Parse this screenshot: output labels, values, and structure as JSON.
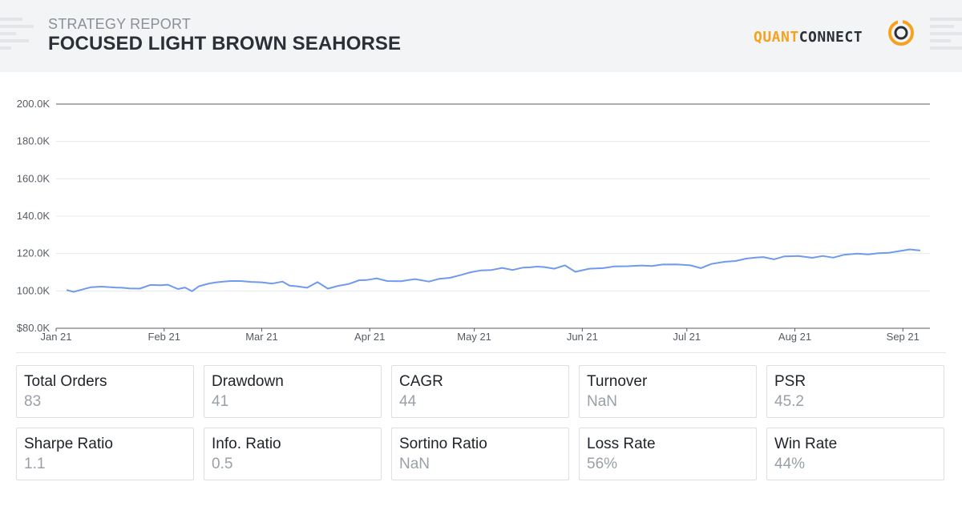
{
  "header": {
    "subtitle": "STRATEGY REPORT",
    "title": "FOCUSED LIGHT BROWN SEAHORSE",
    "logo_quant": "QUANT",
    "logo_connect": "CONNECT"
  },
  "chart_data": {
    "type": "line",
    "title": "",
    "xlabel": "",
    "ylabel": "",
    "ylim": [
      80000,
      200000
    ],
    "y_ticks": [
      "$80.0K",
      "100.0K",
      "120.0K",
      "140.0K",
      "160.0K",
      "180.0K",
      "200.0K"
    ],
    "x_ticks": [
      "Jan 21",
      "Feb 21",
      "Mar 21",
      "Apr 21",
      "May 21",
      "Jun 21",
      "Jul 21",
      "Aug 21",
      "Sep 21"
    ],
    "grid": true,
    "line_color": "#6f9aed",
    "series": [
      {
        "x": [
          "2021-01-04",
          "2021-01-06",
          "2021-01-08",
          "2021-01-11",
          "2021-01-14",
          "2021-01-18",
          "2021-01-20",
          "2021-01-22",
          "2021-01-25",
          "2021-01-28",
          "2021-01-31",
          "2021-02-02",
          "2021-02-05",
          "2021-02-07",
          "2021-02-09",
          "2021-02-11",
          "2021-02-14",
          "2021-02-16",
          "2021-02-18",
          "2021-02-20",
          "2021-02-23",
          "2021-02-26",
          "2021-03-01",
          "2021-03-04",
          "2021-03-07",
          "2021-03-09",
          "2021-03-11",
          "2021-03-14",
          "2021-03-17",
          "2021-03-20",
          "2021-03-23",
          "2021-03-26",
          "2021-03-29",
          "2021-03-31",
          "2021-04-03",
          "2021-04-06",
          "2021-04-10",
          "2021-04-14",
          "2021-04-18",
          "2021-04-21",
          "2021-04-24",
          "2021-04-27",
          "2021-04-30",
          "2021-05-03",
          "2021-05-06",
          "2021-05-09",
          "2021-05-12",
          "2021-05-15",
          "2021-05-17",
          "2021-05-19",
          "2021-05-21",
          "2021-05-24",
          "2021-05-27",
          "2021-05-30",
          "2021-06-03",
          "2021-06-07",
          "2021-06-10",
          "2021-06-14",
          "2021-06-18",
          "2021-06-21",
          "2021-06-24",
          "2021-06-28",
          "2021-07-02",
          "2021-07-05",
          "2021-07-08",
          "2021-07-12",
          "2021-07-15",
          "2021-07-18",
          "2021-07-21",
          "2021-07-23",
          "2021-07-26",
          "2021-07-29",
          "2021-08-02",
          "2021-08-06",
          "2021-08-09",
          "2021-08-12",
          "2021-08-15",
          "2021-08-19",
          "2021-08-22",
          "2021-08-25",
          "2021-08-28",
          "2021-08-31",
          "2021-09-03",
          "2021-09-06"
        ],
        "y": [
          100500,
          99500,
          100500,
          102000,
          102300,
          101800,
          101700,
          101300,
          101200,
          103200,
          103000,
          103300,
          101000,
          101800,
          99800,
          102500,
          104000,
          104600,
          105000,
          105300,
          105300,
          104800,
          104600,
          103900,
          105000,
          102800,
          102500,
          101700,
          104700,
          101200,
          102700,
          103700,
          105700,
          105800,
          106700,
          105300,
          105200,
          106300,
          105000,
          106500,
          107000,
          108400,
          110000,
          111000,
          111200,
          112300,
          111200,
          112500,
          112600,
          113000,
          112800,
          111900,
          113700,
          110200,
          111900,
          112200,
          113100,
          113200,
          113600,
          113300,
          114100,
          114200,
          113700,
          112200,
          114400,
          115600,
          116000,
          117300,
          117900,
          118100,
          116900,
          118500,
          118700,
          117700,
          118700,
          117800,
          119300,
          120000,
          119500,
          120200,
          120400,
          121300,
          122200,
          121600
        ]
      }
    ]
  },
  "metrics": [
    {
      "label": "Total Orders",
      "value": "83"
    },
    {
      "label": "Drawdown",
      "value": "41"
    },
    {
      "label": "CAGR",
      "value": "44"
    },
    {
      "label": "Turnover",
      "value": "NaN"
    },
    {
      "label": "PSR",
      "value": "45.2"
    },
    {
      "label": "Sharpe Ratio",
      "value": "1.1"
    },
    {
      "label": "Info. Ratio",
      "value": "0.5"
    },
    {
      "label": "Sortino Ratio",
      "value": "NaN"
    },
    {
      "label": "Loss Rate",
      "value": "56%"
    },
    {
      "label": "Win Rate",
      "value": "44%"
    }
  ]
}
